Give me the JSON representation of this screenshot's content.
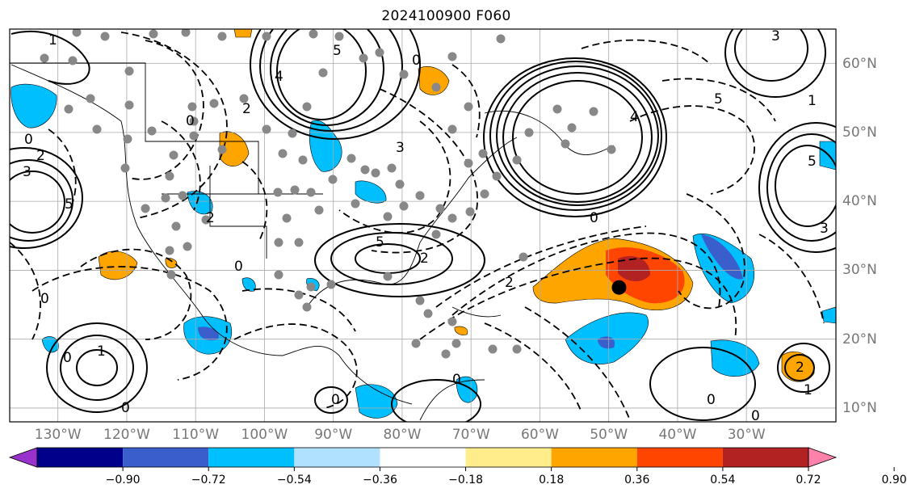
{
  "title": "2024100900 F060",
  "map": {
    "lon_range": [
      -137,
      -17
    ],
    "lat_range": [
      8,
      65
    ],
    "lon_ticks": [
      {
        "v": -130,
        "label": "130°W"
      },
      {
        "v": -120,
        "label": "120°W"
      },
      {
        "v": -110,
        "label": "110°W"
      },
      {
        "v": -100,
        "label": "100°W"
      },
      {
        "v": -90,
        "label": "90°W"
      },
      {
        "v": -80,
        "label": "80°W"
      },
      {
        "v": -70,
        "label": "70°W"
      },
      {
        "v": -60,
        "label": "60°W"
      },
      {
        "v": -50,
        "label": "50°W"
      },
      {
        "v": -40,
        "label": "40°W"
      },
      {
        "v": -30,
        "label": "30°W"
      }
    ],
    "lat_ticks": [
      {
        "v": 10,
        "label": "10°N"
      },
      {
        "v": 20,
        "label": "20°N"
      },
      {
        "v": 30,
        "label": "30°N"
      },
      {
        "v": 40,
        "label": "40°N"
      },
      {
        "v": 50,
        "label": "50°N"
      },
      {
        "v": 60,
        "label": "60°N"
      }
    ],
    "marker": {
      "lon": -48.5,
      "lat": 27.5
    }
  },
  "colorbar": {
    "colors": [
      "#9932cc",
      "#00008b",
      "#3a5fcd",
      "#00bfff",
      "#b0e2ff",
      "#ffffff",
      "#ffec8b",
      "#ffa500",
      "#ff4500",
      "#b22222",
      "#ff82ab"
    ],
    "labels": [
      "−0.90",
      "−0.72",
      "−0.54",
      "−0.36",
      "−0.18",
      "0.18",
      "0.36",
      "0.54",
      "0.72",
      "0.90"
    ]
  },
  "colors": {
    "accent": "#000000",
    "grid": "#aaaaaa",
    "station": "#888888"
  }
}
